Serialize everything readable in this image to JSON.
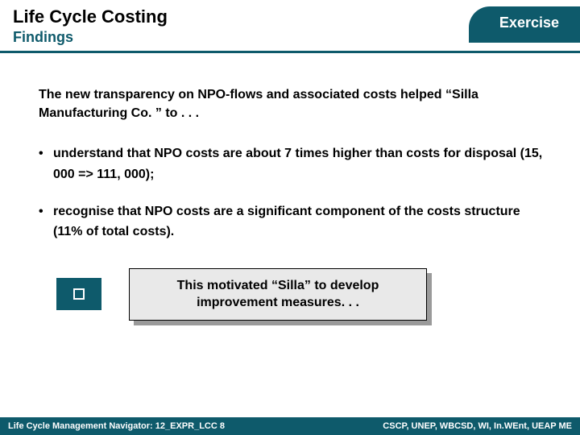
{
  "header": {
    "title_main": "Life Cycle Costing",
    "title_sub": "Findings",
    "badge": "Exercise"
  },
  "content": {
    "intro": "The new transparency on NPO-flows and associated costs helped “Silla Manufacturing Co. ” to . . .",
    "bullets": [
      "understand that NPO costs are about 7 times higher than costs for disposal (15, 000 => 111, 000);",
      "recognise that NPO costs are a significant component of the costs structure (11% of total costs)."
    ],
    "callout": "This motivated “Silla” to develop improvement measures. . ."
  },
  "footer": {
    "left": "Life Cycle Management Navigator: 12_EXPR_LCC 8",
    "right": "CSCP, UNEP, WBCSD, WI, In.WEnt, UEAP ME"
  },
  "colors": {
    "brand": "#0e5a6b",
    "callout_bg": "#e9e9e9",
    "callout_shadow": "#9a9a9a",
    "text": "#000000",
    "white": "#ffffff"
  }
}
